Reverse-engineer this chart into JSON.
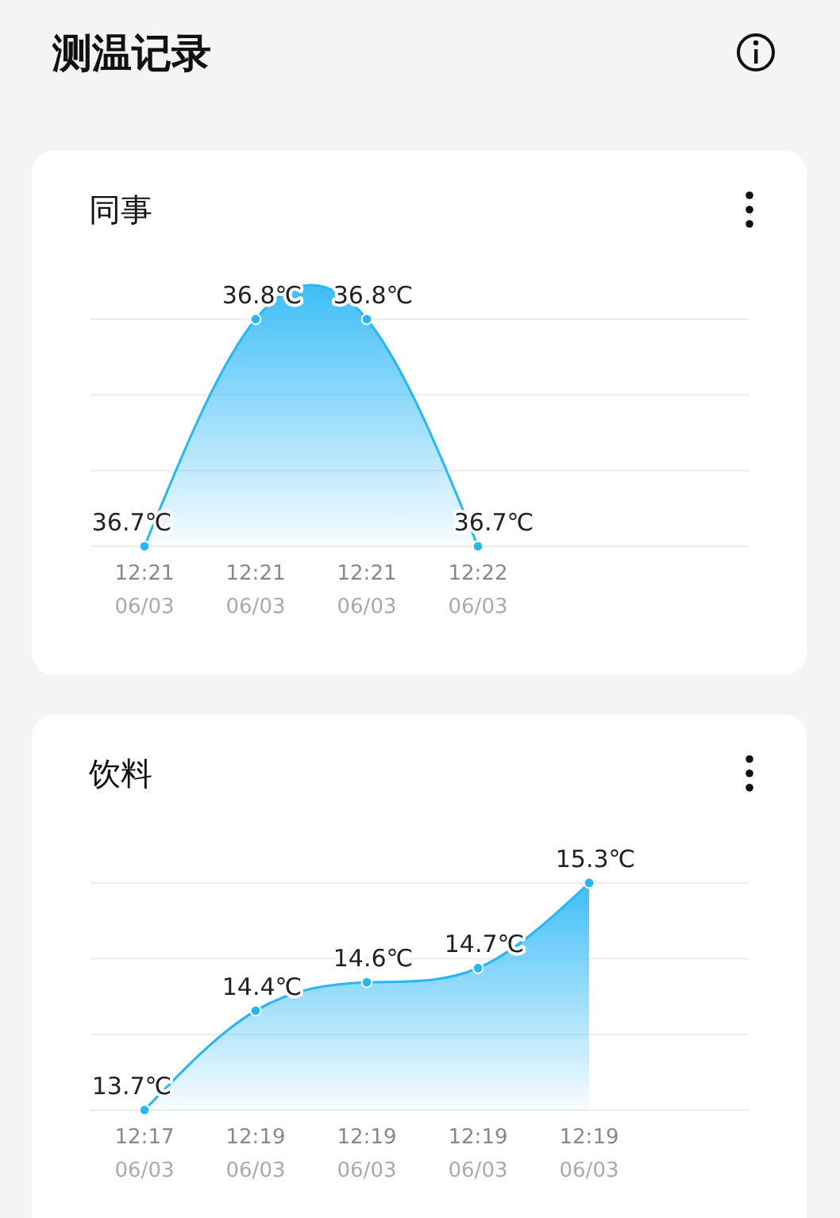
{
  "chart_data": [
    {
      "type": "other",
      "title": "测温记录"
    },
    {
      "type": "area",
      "title": "同事",
      "categories": [
        "12:21\n06/03",
        "12:21\n06/03",
        "12:21\n06/03",
        "12:22\n06/03"
      ],
      "color": "#29b6f6",
      "values": [
        36.7,
        36.8,
        36.8,
        36.7
      ],
      "value_labels": [
        "36.7℃",
        "36.8℃",
        "36.8℃",
        "36.7℃"
      ],
      "grid": true,
      "marker": "circle"
    },
    {
      "type": "area",
      "title": "饮料",
      "categories": [
        "12:17\n06/03",
        "12:19\n06/03",
        "12:19\n06/03",
        "12:19\n06/03",
        "12:19\n06/03"
      ],
      "color": "#29b6f6",
      "values": [
        13.7,
        14.4,
        14.6,
        14.7,
        15.3
      ],
      "value_labels": [
        "13.7℃",
        "14.4℃",
        "14.6℃",
        "14.7℃",
        "15.3℃"
      ],
      "grid": true,
      "marker": "circle"
    }
  ]
}
